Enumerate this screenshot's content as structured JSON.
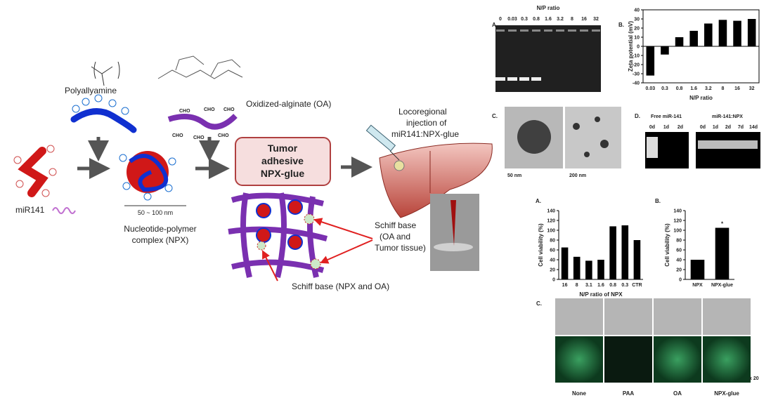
{
  "schematic": {
    "polyallyamine": "Polyallyamine",
    "oxidized_alginate": "Oxidized-alginate (OA)",
    "cho": "CHO",
    "injection": [
      "Locoregional",
      "injection of",
      "miR141:NPX-glue"
    ],
    "glue_box": [
      "Tumor",
      "adhesive",
      "NPX-glue"
    ],
    "mir141": "miR141",
    "scale": "50 ~ 100 nm",
    "npx": [
      "Nucleotide-polymer",
      "complex (NPX)"
    ],
    "schiff_tissue": [
      "Schiff base",
      "(OA and",
      "Tumor tissue)"
    ],
    "schiff_npx": "Schiff base (NPX and OA)"
  },
  "gel_panel": {
    "label": "A.",
    "title": "N/P ratio",
    "lanes": [
      "0",
      "0.03",
      "0.3",
      "0.8",
      "1.6",
      "3.2",
      "8",
      "16",
      "32"
    ]
  },
  "tem_panel": {
    "label": "C.",
    "scales": [
      "50 nm",
      "200 nm"
    ]
  },
  "stability_panel": {
    "label": "D.",
    "groups": [
      "Free miR-141",
      "miR-141:NPX"
    ],
    "lanes_free": [
      "0d",
      "1d",
      "2d"
    ],
    "lanes_npx": [
      "0d",
      "1d",
      "2d",
      "7d",
      "14d"
    ]
  },
  "image_panel": {
    "label": "C.",
    "columns": [
      "None",
      "PAA",
      "OA",
      "NPX-glue"
    ],
    "magnification": "x 20"
  },
  "chart_data": [
    {
      "type": "bar",
      "panel_label": "B.",
      "ylabel": "Zeta potential (mV)",
      "xlabel": "N/P ratio",
      "categories": [
        "0.03",
        "0.3",
        "0.8",
        "1.6",
        "3.2",
        "8",
        "16",
        "32"
      ],
      "values": [
        -32,
        -9,
        10,
        17,
        25,
        29,
        28,
        30
      ],
      "color": "#000000",
      "ylim": [
        -40,
        40
      ],
      "yticks": [
        -40,
        -30,
        -20,
        -10,
        0,
        10,
        20,
        30,
        40
      ]
    },
    {
      "type": "bar",
      "panel_label": "A.",
      "ylabel": "Cell viability (%)",
      "xlabel": "N/P ratio of NPX",
      "categories": [
        "16",
        "8",
        "3.1",
        "1.6",
        "0.8",
        "0.3",
        "CTR"
      ],
      "values": [
        65,
        46,
        38,
        40,
        108,
        110,
        80
      ],
      "color": "#000000",
      "ylim": [
        0,
        140
      ],
      "yticks": [
        0,
        20,
        40,
        60,
        80,
        100,
        120,
        140
      ]
    },
    {
      "type": "bar",
      "panel_label": "B.",
      "ylabel": "Cell viability (%)",
      "categories": [
        "NPX",
        "NPX-glue"
      ],
      "values": [
        40,
        105
      ],
      "color": "#000000",
      "ylim": [
        0,
        140
      ],
      "yticks": [
        0,
        20,
        40,
        60,
        80,
        100,
        120,
        140
      ],
      "annotations": [
        "*"
      ]
    }
  ]
}
